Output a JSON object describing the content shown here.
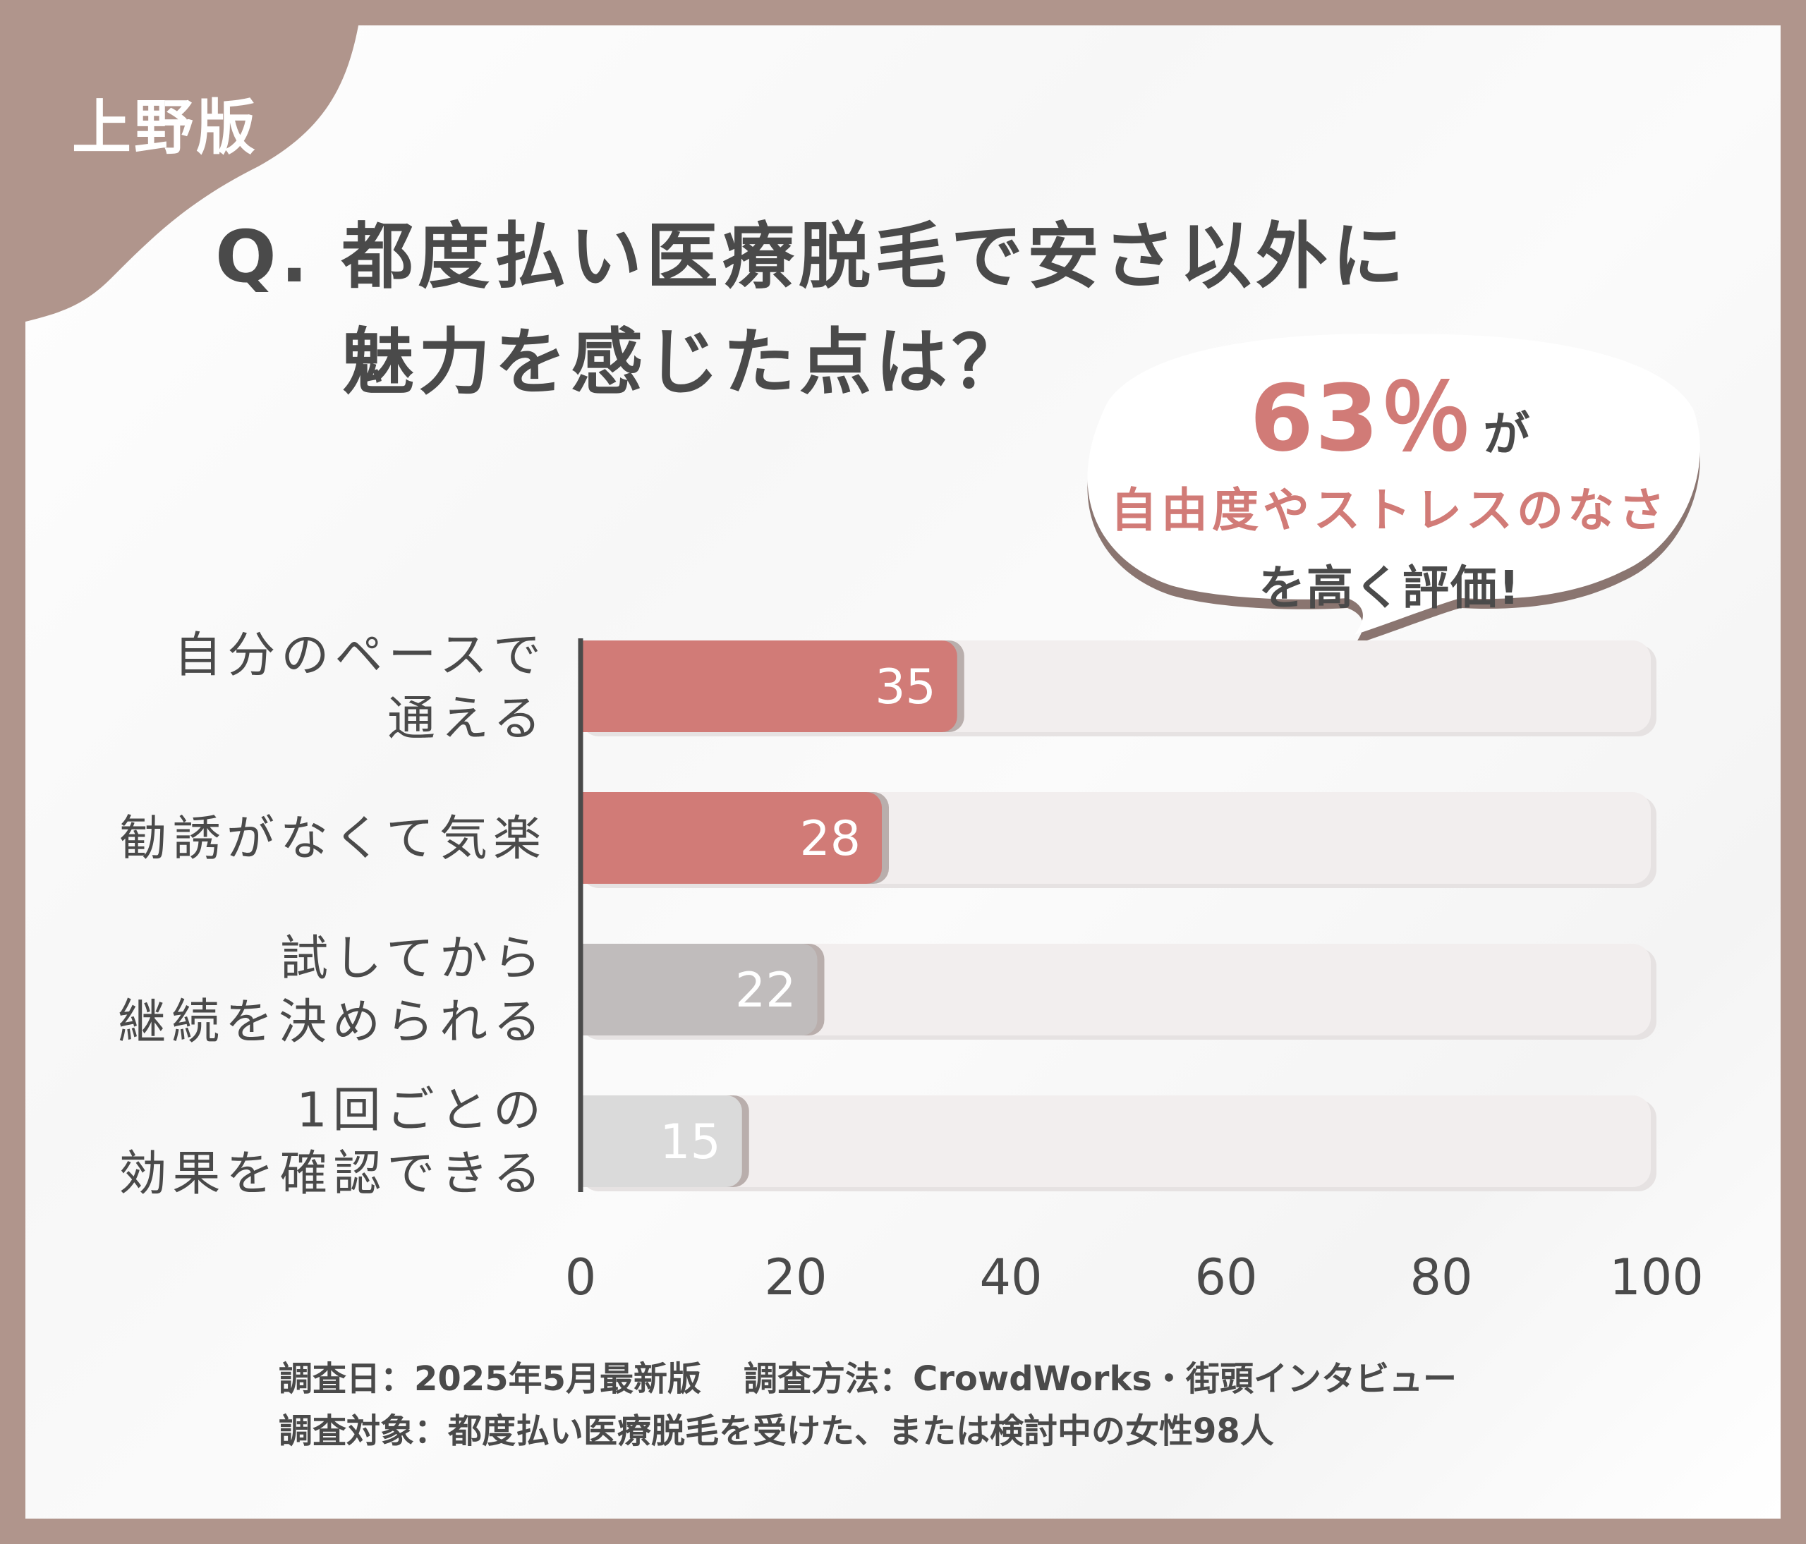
{
  "tag": "上野版",
  "question": {
    "line1": "Q. 都度払い医療脱毛で安さ以外に",
    "line2": "魅力を感じた点は？"
  },
  "callout": {
    "percent": "63％",
    "suffix": "が",
    "highlight": "自由度やストレスのなさ",
    "closing": "を高く評価!"
  },
  "chart_data": {
    "type": "bar",
    "orientation": "horizontal",
    "categories": [
      [
        "自分のペースで",
        "通える"
      ],
      [
        "勧誘がなくて気楽"
      ],
      [
        "試してから",
        "継続を決められる"
      ],
      [
        "1回ごとの",
        "効果を確認できる"
      ]
    ],
    "values": [
      35,
      28,
      22,
      15
    ],
    "value_labels": [
      "35",
      "28",
      "22",
      "15"
    ],
    "bar_colors": [
      "#d17b77",
      "#d17b77",
      "#c0bcbc",
      "#dadada"
    ],
    "track_color": "#f2eeee",
    "xlim": [
      0,
      100
    ],
    "x_ticks": [
      "0",
      "20",
      "40",
      "60",
      "80",
      "100"
    ],
    "grid": false,
    "legend": "none"
  },
  "footer": {
    "date": "調査日：2025年5月最新版",
    "method": "調査方法：CrowdWorks・街頭インタビュー",
    "target": "調査対象：都度払い医療脱毛を受けた、または検討中の女性98人"
  },
  "colors": {
    "frame": "#b0958c",
    "accent": "#d17b77",
    "text": "#4a4a4a"
  }
}
